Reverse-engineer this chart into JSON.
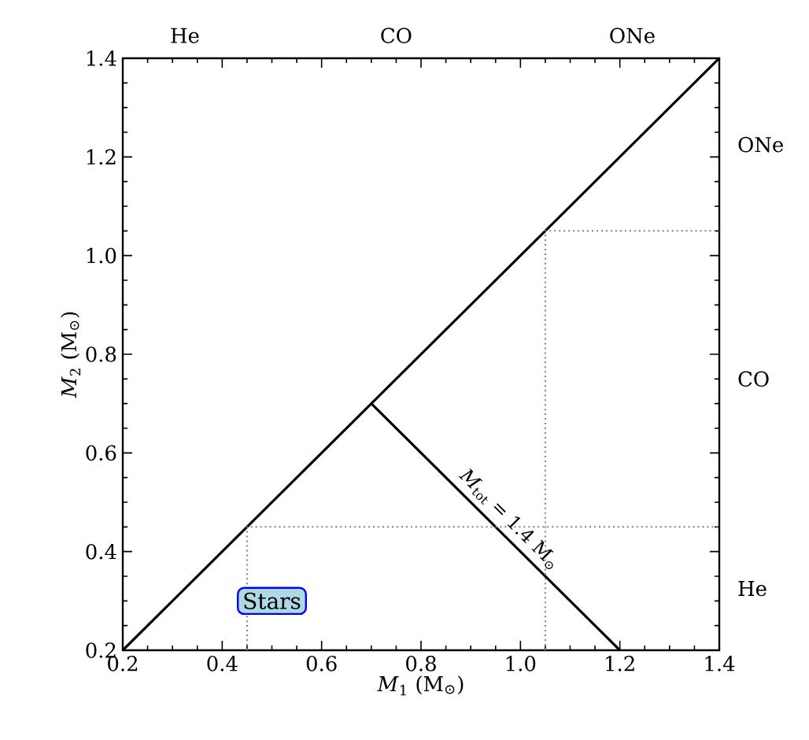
{
  "chart_data": {
    "type": "line",
    "xlabel": "*M*$_{1}$ (M$_{⊙}$)",
    "ylabel": "*M*$_{2}$ (M$_{⊙}$)",
    "xlim": [
      0.2,
      1.4
    ],
    "ylim": [
      0.2,
      1.4
    ],
    "xticks": [
      0.2,
      0.4,
      0.6,
      0.8,
      {
        "value": 1.0,
        "label": "1.0"
      },
      1.2,
      1.4
    ],
    "yticks": [
      0.2,
      0.4,
      0.6,
      0.8,
      {
        "value": 1.0,
        "label": "1.0"
      },
      1.2,
      1.4
    ],
    "series": [
      {
        "x": [
          0.2,
          1.4
        ],
        "values": [
          0.2,
          1.4
        ],
        "color": "#000000",
        "line_style": "solid"
      },
      {
        "x": [
          0.7,
          1.2
        ],
        "values": [
          0.7,
          0.2
        ],
        "color": "#000000",
        "line_style": "solid"
      },
      {
        "x": [
          0.45,
          0.45,
          1.4
        ],
        "values": [
          0.2,
          0.45,
          0.45
        ],
        "color": "#808080",
        "line_style": "dotted"
      },
      {
        "x": [
          1.05,
          1.05,
          1.4
        ],
        "values": [
          0.2,
          1.05,
          1.05
        ],
        "color": "#808080",
        "line_style": "dotted"
      }
    ],
    "annotations": [
      "*M*$_{tot}$ = 1.4 M$_{⊙}$",
      {
        "text": "Stars",
        "x": 0.5,
        "y": 0.3
      },
      "He",
      "CO",
      "ONe",
      "He",
      "CO",
      "ONe"
    ]
  }
}
